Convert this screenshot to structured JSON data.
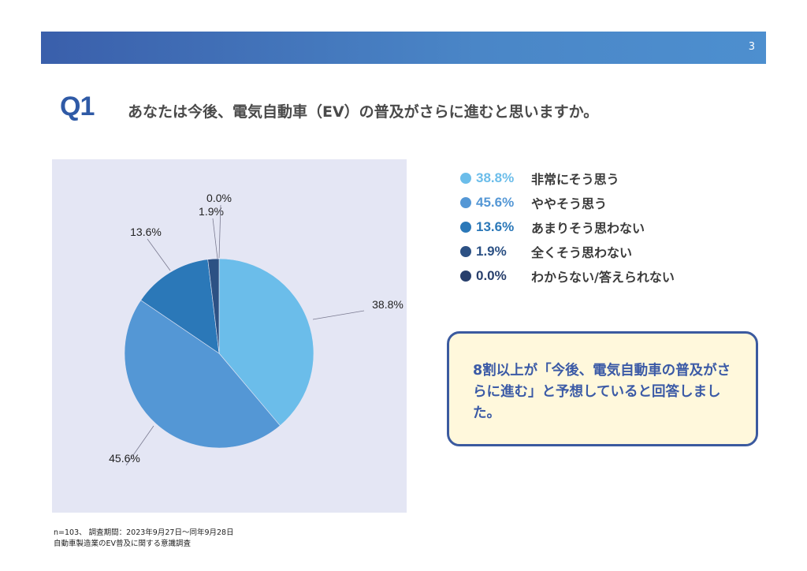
{
  "header": {
    "page_number": "3"
  },
  "question": {
    "label": "Q1",
    "text": "あなたは今後、電気自動車（EV）の普及がさらに進むと思いますか。"
  },
  "legend": [
    {
      "pct": "38.8%",
      "label": "非常にそう思う",
      "color": "#6bbdea"
    },
    {
      "pct": "45.6%",
      "label": "ややそう思う",
      "color": "#5497d5"
    },
    {
      "pct": "13.6%",
      "label": "あまりそう思わない",
      "color": "#2b78b8"
    },
    {
      "pct": "1.9%",
      "label": "全くそう思わない",
      "color": "#2c5184"
    },
    {
      "pct": "0.0%",
      "label": "わからない/答えられない",
      "color": "#283f6c"
    }
  ],
  "callout": {
    "text": "8割以上が「今後、電気自動車の普及がさらに進む」と予想していると回答しました。"
  },
  "footnotes": {
    "line1": "n=103、 調査期間：2023年9月27日〜同年9月28日",
    "line2": "自動車製造業のEV普及に関する意識調査"
  },
  "chart_data": {
    "type": "pie",
    "categories": [
      "非常にそう思う",
      "ややそう思う",
      "あまりそう思わない",
      "全くそう思わない",
      "わからない/答えられない"
    ],
    "values": [
      38.8,
      45.6,
      13.6,
      1.9,
      0.0
    ],
    "labels": [
      "38.8%",
      "45.6%",
      "13.6%",
      "1.9%",
      "0.0%"
    ],
    "colors": [
      "#6bbdea",
      "#5497d5",
      "#2b78b8",
      "#2c5184",
      "#283f6c"
    ],
    "start": "12 o'clock",
    "direction": "clockwise",
    "legend": "right"
  }
}
